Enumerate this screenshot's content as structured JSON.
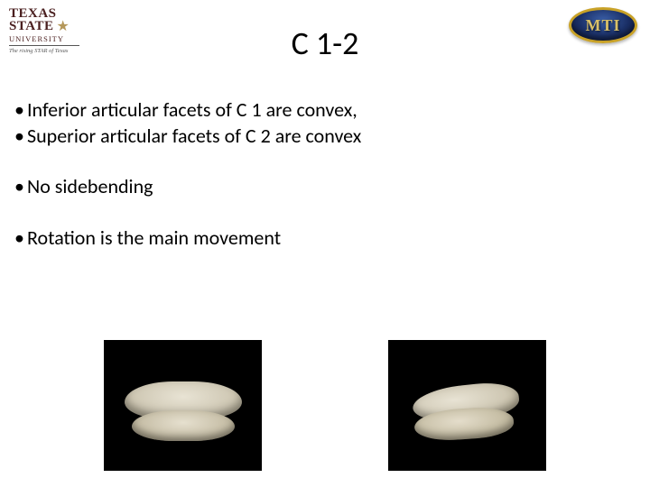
{
  "logos": {
    "left": {
      "line1": "TEXAS",
      "line2": "STATE",
      "star_glyph": "★",
      "university": "UNIVERSITY",
      "tagline": "The rising STAR of Texas"
    },
    "right": {
      "text": "MTI"
    }
  },
  "title": "C 1-2",
  "bullets": {
    "group1": [
      "Inferior articular facets of C 1 are convex,",
      "Superior articular facets of C 2 are convex"
    ],
    "group2": [
      "No sidebending"
    ],
    "group3": [
      "Rotation is the main movement"
    ]
  },
  "images": {
    "left_alt": "C1-C2 vertebrae anterior view",
    "right_alt": "C1-C2 vertebrae lateral view"
  }
}
